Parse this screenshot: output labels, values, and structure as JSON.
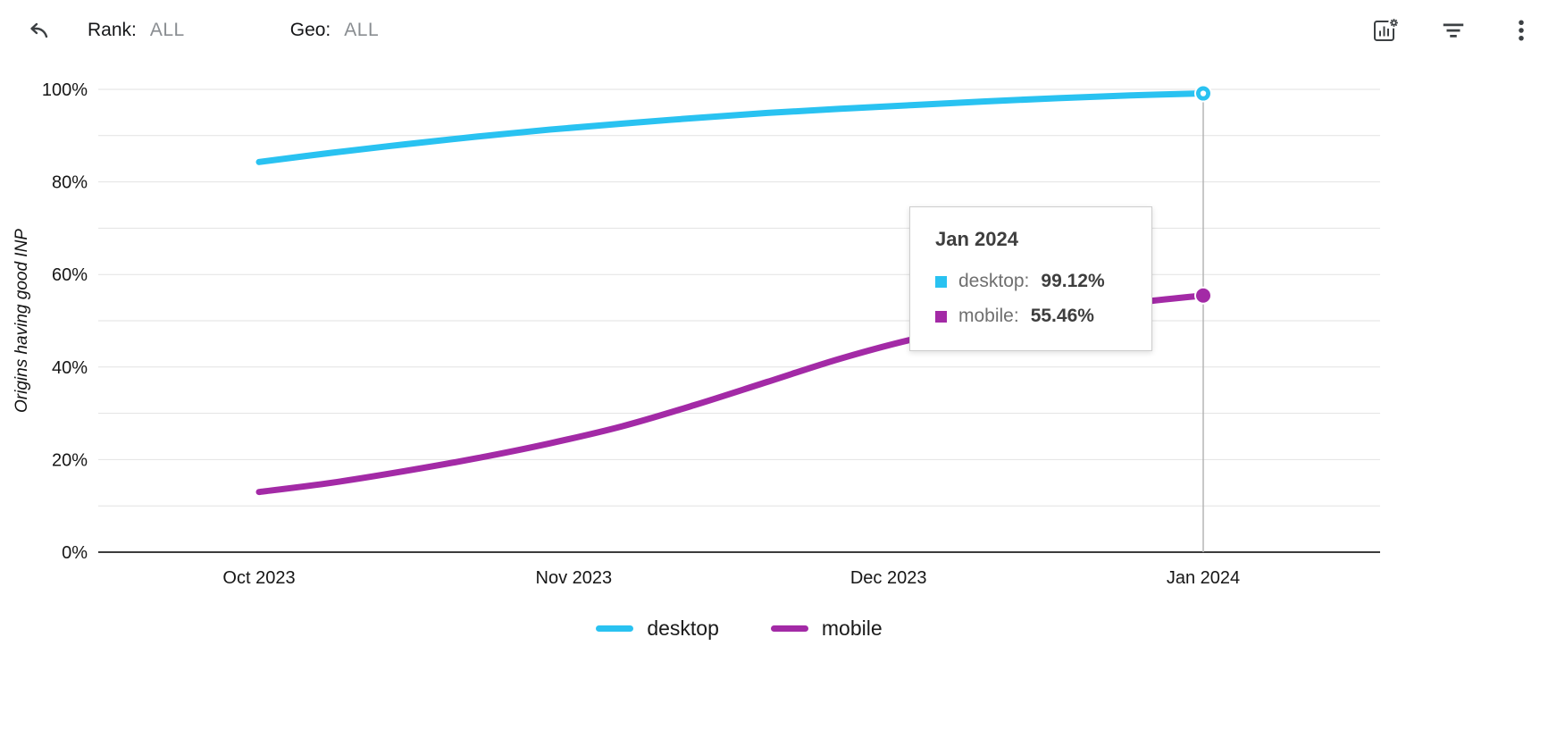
{
  "toolbar": {
    "rank_label": "Rank:",
    "rank_value": "ALL",
    "geo_label": "Geo:",
    "geo_value": "ALL",
    "icons": [
      "undo",
      "chart-settings",
      "filter",
      "more-options"
    ]
  },
  "chart_data": {
    "type": "line",
    "title": "",
    "xlabel": "",
    "ylabel": "Origins having good INP",
    "ylim": [
      0,
      100
    ],
    "grid": true,
    "y_gridline_step": 10,
    "y_ticks": [
      {
        "value": 0,
        "label": "0%"
      },
      {
        "value": 20,
        "label": "20%"
      },
      {
        "value": 40,
        "label": "40%"
      },
      {
        "value": 60,
        "label": "60%"
      },
      {
        "value": 80,
        "label": "80%"
      },
      {
        "value": 100,
        "label": "100%"
      }
    ],
    "x_tick_labels": [
      "Oct 2023",
      "Nov 2023",
      "Dec 2023",
      "Jan 2024"
    ],
    "legend_position": "bottom",
    "highlighted_x": "Jan 2024",
    "series": [
      {
        "name": "desktop",
        "color": "#29c2f1",
        "values": [
          84.3,
          86.3,
          88.1,
          89.8,
          91.3,
          92.6,
          93.8,
          94.9,
          95.8,
          96.6,
          97.4,
          98.1,
          98.7,
          99.12
        ]
      },
      {
        "name": "mobile",
        "color": "#a32aa6",
        "values": [
          13.0,
          15.0,
          17.5,
          20.3,
          23.5,
          27.2,
          31.8,
          36.8,
          41.8,
          46.0,
          49.2,
          51.8,
          53.8,
          55.46
        ]
      }
    ]
  },
  "tooltip": {
    "title": "Jan 2024",
    "rows": [
      {
        "label": "desktop:",
        "value": "99.12%"
      },
      {
        "label": "mobile:",
        "value": "55.46%"
      }
    ]
  }
}
